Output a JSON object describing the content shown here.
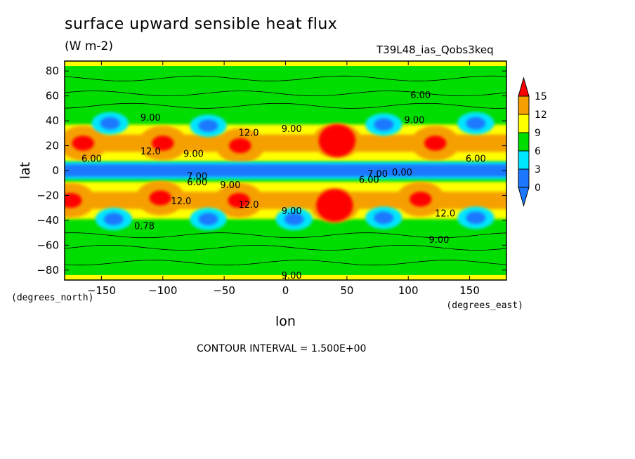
{
  "chart_data": {
    "type": "contour",
    "title": "surface upward sensible heat flux",
    "units": "(W m-2)",
    "run_label": "T39L48_ias_Qobs3keq",
    "xlabel": "lon",
    "ylabel": "lat",
    "x_units": "(degrees_east)",
    "y_units": "(degrees_north)",
    "xlim": [
      -180,
      180
    ],
    "ylim": [
      -88,
      88
    ],
    "x_ticks": [
      -150,
      -100,
      -50,
      0,
      50,
      100,
      150
    ],
    "y_ticks": [
      -80,
      -60,
      -40,
      -20,
      0,
      20,
      40,
      60,
      80
    ],
    "x_tick_labels": [
      "−150",
      "−100",
      "−50",
      "0",
      "50",
      "100",
      "150"
    ],
    "y_tick_labels": [
      "−80",
      "−60",
      "−40",
      "−20",
      "0",
      "20",
      "40",
      "60",
      "80"
    ],
    "contour_interval_text": "CONTOUR INTERVAL = 1.500E+00",
    "colorbar": {
      "labels": [
        "0",
        "3",
        "6",
        "9",
        "12",
        "15"
      ],
      "bins": [
        {
          "range": "<0",
          "color": "#1e78ff"
        },
        {
          "range": "0-3",
          "color": "#1e78ff"
        },
        {
          "range": "3-6",
          "color": "#00e6ff"
        },
        {
          "range": "6-9",
          "color": "#00dd00"
        },
        {
          "range": "9-12",
          "color": "#ffff00"
        },
        {
          "range": "12-15",
          "color": "#f5a000"
        },
        {
          "range": ">15",
          "color": "#ff0000"
        }
      ]
    },
    "contour_labels": [
      {
        "text": "6.00",
        "lon": 110,
        "lat": 60
      },
      {
        "text": "9.00",
        "lon": -110,
        "lat": 42
      },
      {
        "text": "12.0",
        "lon": -30,
        "lat": 30
      },
      {
        "text": "9.00",
        "lon": 5,
        "lat": 33
      },
      {
        "text": "9.00",
        "lon": 105,
        "lat": 40
      },
      {
        "text": "12.0",
        "lon": -110,
        "lat": 15
      },
      {
        "text": "9.00",
        "lon": -75,
        "lat": 13
      },
      {
        "text": "6.00",
        "lon": -158,
        "lat": 9
      },
      {
        "text": "6.00",
        "lon": 155,
        "lat": 9
      },
      {
        "text": "7.00",
        "lon": -72,
        "lat": -5
      },
      {
        "text": "6.00",
        "lon": -72,
        "lat": -10
      },
      {
        "text": "9.00",
        "lon": -45,
        "lat": -12
      },
      {
        "text": "12.0",
        "lon": -30,
        "lat": -28
      },
      {
        "text": "12.0",
        "lon": -85,
        "lat": -25
      },
      {
        "text": "6.00",
        "lon": 68,
        "lat": -8
      },
      {
        "text": "7.00",
        "lon": 75,
        "lat": -3
      },
      {
        "text": "0.00",
        "lon": 95,
        "lat": -2
      },
      {
        "text": "9.00",
        "lon": 5,
        "lat": -33
      },
      {
        "text": "0.78",
        "lon": -115,
        "lat": -45
      },
      {
        "text": "12.0",
        "lon": 130,
        "lat": -35
      },
      {
        "text": "9.00",
        "lon": 125,
        "lat": -56
      },
      {
        "text": "9.00",
        "lon": 5,
        "lat": -85
      }
    ],
    "features": [
      {
        "kind": "max",
        "lon": -165,
        "lat": 22,
        "value": ">15"
      },
      {
        "kind": "max",
        "lon": -100,
        "lat": 22,
        "value": ">15"
      },
      {
        "kind": "max",
        "lon": -37,
        "lat": 20,
        "value": ">15"
      },
      {
        "kind": "max",
        "lon": 42,
        "lat": 24,
        "value": ">15"
      },
      {
        "kind": "max",
        "lon": 122,
        "lat": 22,
        "value": ">15"
      },
      {
        "kind": "max",
        "lon": -175,
        "lat": -24,
        "value": ">15"
      },
      {
        "kind": "max",
        "lon": -102,
        "lat": -22,
        "value": ">15"
      },
      {
        "kind": "max",
        "lon": -38,
        "lat": -24,
        "value": ">15"
      },
      {
        "kind": "max",
        "lon": 40,
        "lat": -28,
        "value": ">15"
      },
      {
        "kind": "max",
        "lon": 110,
        "lat": -23,
        "value": ">15"
      },
      {
        "kind": "min",
        "lon": -143,
        "lat": 38,
        "value": "<3"
      },
      {
        "kind": "min",
        "lon": -63,
        "lat": 36,
        "value": "<3"
      },
      {
        "kind": "min",
        "lon": 80,
        "lat": 37,
        "value": "<3"
      },
      {
        "kind": "min",
        "lon": 155,
        "lat": 38,
        "value": "<3"
      },
      {
        "kind": "min",
        "lon": -140,
        "lat": -39,
        "value": "<3"
      },
      {
        "kind": "min",
        "lon": -63,
        "lat": -39,
        "value": "<3"
      },
      {
        "kind": "min",
        "lon": 7,
        "lat": -39,
        "value": "<3"
      },
      {
        "kind": "min",
        "lon": 80,
        "lat": -38,
        "value": "<3"
      },
      {
        "kind": "min",
        "lon": 155,
        "lat": -38,
        "value": "<3"
      },
      {
        "kind": "equatorial_band",
        "lat_range": [
          -5,
          5
        ],
        "value": "0-3"
      }
    ]
  }
}
